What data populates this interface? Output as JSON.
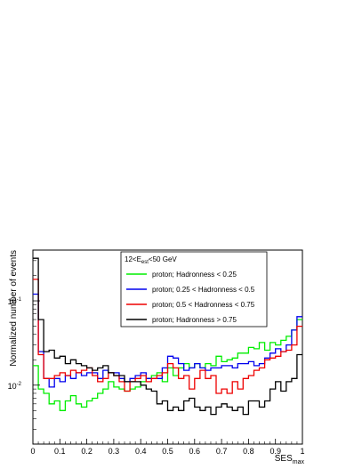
{
  "chart_data": {
    "type": "line",
    "title": "",
    "xlabel": "SES",
    "xlabel_sub": "max",
    "ylabel": "Normalized number of events",
    "xlim": [
      0,
      1
    ],
    "ylim": [
      0.002,
      0.4
    ],
    "yscale": "log",
    "x_ticks": [
      0,
      0.1,
      0.2,
      0.3,
      0.4,
      0.5,
      0.6,
      0.7,
      0.8,
      0.9,
      1
    ],
    "x_tick_labels": [
      "0",
      "0.1",
      "0.2",
      "0.3",
      "0.4",
      "0.5",
      "0.6",
      "0.7",
      "0.8",
      "0.9",
      "1"
    ],
    "y_major_ticks": [
      0.01,
      0.1
    ],
    "y_tick_label_base": [
      "10",
      "10"
    ],
    "y_tick_label_exp": [
      "-2",
      "-1"
    ],
    "grid": false,
    "legend": {
      "placement": "top-center",
      "header_main": "12<E",
      "header_sub": "est",
      "header_rest": "<50 GeV"
    },
    "bin_width": 0.02,
    "series": [
      {
        "name": "proton; Hadronness < 0.25",
        "color": "#00ee00",
        "values": [
          0.017,
          0.009,
          0.008,
          0.006,
          0.0065,
          0.005,
          0.0065,
          0.0075,
          0.006,
          0.0055,
          0.0065,
          0.007,
          0.008,
          0.009,
          0.011,
          0.0095,
          0.009,
          0.0085,
          0.009,
          0.0095,
          0.011,
          0.012,
          0.013,
          0.014,
          0.011,
          0.016,
          0.013,
          0.016,
          0.018,
          0.016,
          0.018,
          0.016,
          0.018,
          0.017,
          0.022,
          0.019,
          0.02,
          0.021,
          0.024,
          0.024,
          0.028,
          0.027,
          0.032,
          0.026,
          0.032,
          0.03,
          0.034,
          0.038,
          0.045,
          0.06
        ]
      },
      {
        "name": "proton; 0.25 < Hadronness < 0.5",
        "color": "#0000ee",
        "values": [
          0.12,
          0.025,
          0.012,
          0.0095,
          0.012,
          0.011,
          0.013,
          0.012,
          0.014,
          0.013,
          0.014,
          0.014,
          0.012,
          0.015,
          0.014,
          0.014,
          0.012,
          0.011,
          0.012,
          0.013,
          0.014,
          0.012,
          0.012,
          0.012,
          0.016,
          0.022,
          0.021,
          0.018,
          0.015,
          0.016,
          0.018,
          0.016,
          0.015,
          0.016,
          0.016,
          0.017,
          0.017,
          0.016,
          0.018,
          0.018,
          0.019,
          0.017,
          0.018,
          0.021,
          0.024,
          0.027,
          0.025,
          0.03,
          0.045,
          0.065
        ]
      },
      {
        "name": "proton; 0.5 < Hadronness < 0.75",
        "color": "#ee0000",
        "values": [
          0.18,
          0.023,
          0.012,
          0.012,
          0.013,
          0.014,
          0.013,
          0.015,
          0.014,
          0.015,
          0.016,
          0.013,
          0.011,
          0.012,
          0.014,
          0.013,
          0.011,
          0.0085,
          0.011,
          0.012,
          0.013,
          0.011,
          0.012,
          0.013,
          0.014,
          0.018,
          0.016,
          0.012,
          0.013,
          0.009,
          0.012,
          0.015,
          0.012,
          0.013,
          0.008,
          0.009,
          0.008,
          0.011,
          0.009,
          0.012,
          0.013,
          0.015,
          0.016,
          0.02,
          0.021,
          0.022,
          0.025,
          0.026,
          0.03,
          0.05
        ]
      },
      {
        "name": "proton; Hadronness > 0.75",
        "color": "#000000",
        "values": [
          0.32,
          0.06,
          0.025,
          0.026,
          0.021,
          0.022,
          0.018,
          0.02,
          0.018,
          0.017,
          0.016,
          0.015,
          0.016,
          0.017,
          0.014,
          0.013,
          0.013,
          0.011,
          0.011,
          0.011,
          0.01,
          0.009,
          0.0085,
          0.006,
          0.0065,
          0.005,
          0.0055,
          0.005,
          0.0065,
          0.007,
          0.0055,
          0.005,
          0.0055,
          0.0045,
          0.0055,
          0.006,
          0.0055,
          0.005,
          0.0055,
          0.0045,
          0.0065,
          0.0065,
          0.0055,
          0.0065,
          0.009,
          0.011,
          0.0085,
          0.011,
          0.012,
          0.023
        ]
      }
    ]
  }
}
